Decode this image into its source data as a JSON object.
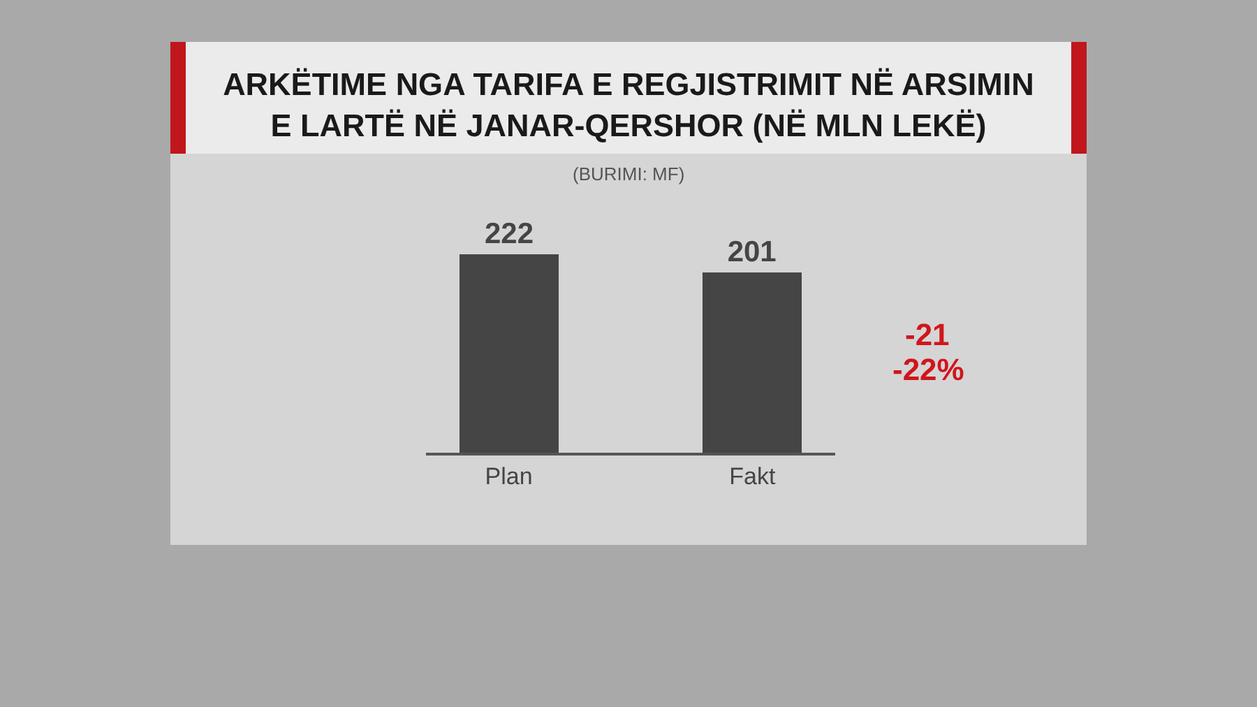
{
  "chart_data": {
    "type": "bar",
    "title": "ARKËTIME NGA TARIFA E REGJISTRIMIT NË ARSIMIN E LARTË NË JANAR-QERSHOR (NË MLN LEKË)",
    "annotations": [
      "(BURIMI: MF)",
      "-21",
      "-22%"
    ],
    "categories": [
      "Plan",
      "Fakt"
    ],
    "values": [
      222,
      201
    ],
    "color": "#454545",
    "data_labels": true,
    "tick_labels": "x"
  }
}
